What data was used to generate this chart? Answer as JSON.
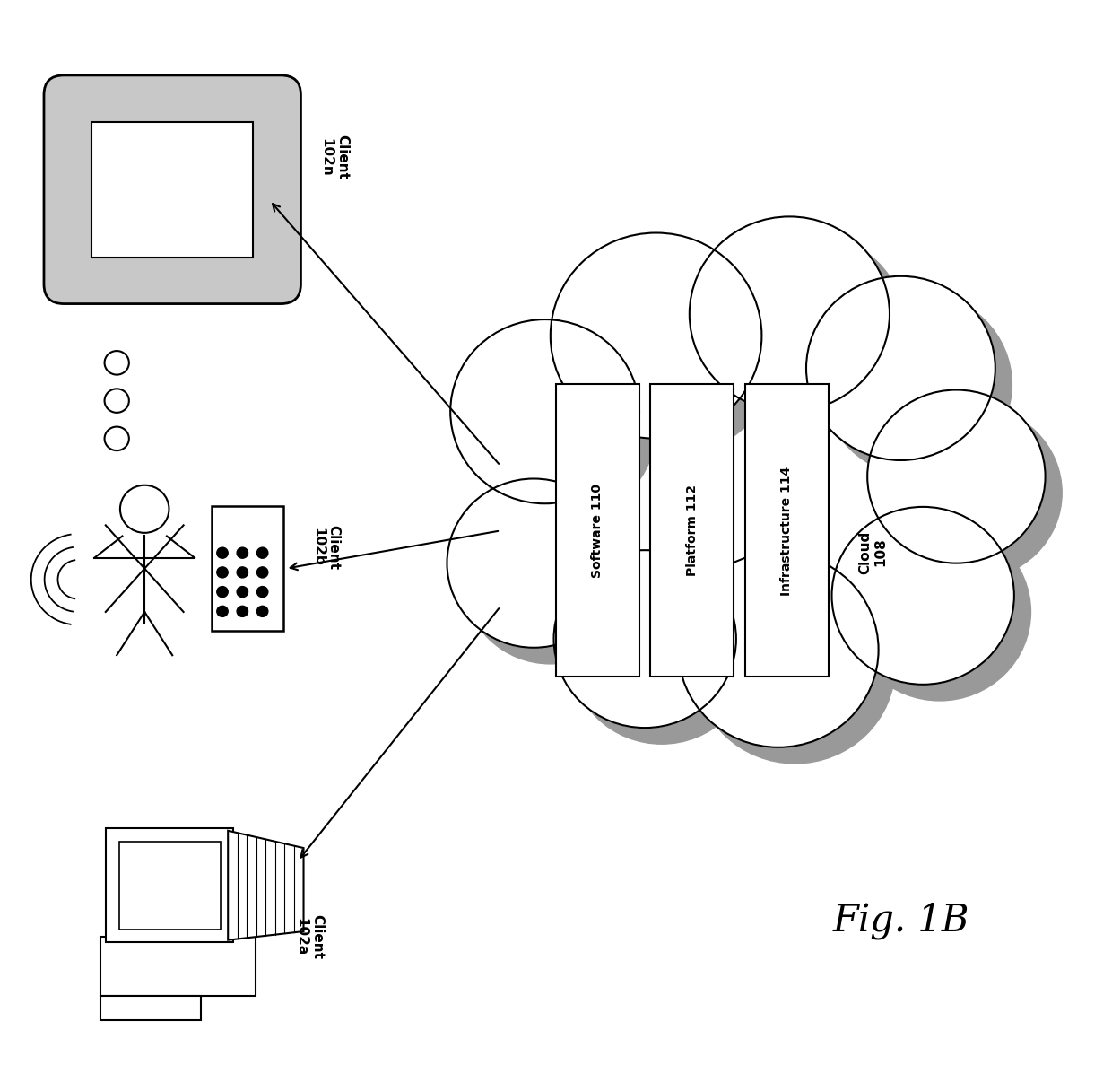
{
  "background_color": "#ffffff",
  "cloud_label": "Cloud\n108",
  "cloud_layers": [
    "Software 110",
    "Platform 112",
    "Infrastructure 114"
  ],
  "clients": [
    {
      "label": "Client\n102n",
      "type": "tablet"
    },
    {
      "label": "Client\n102b",
      "type": "mobile"
    },
    {
      "label": "Client\n102a",
      "type": "laptop"
    }
  ],
  "fig_label": "Fig. 1B",
  "tablet_color": "#cccccc",
  "cloud_gray": "#aaaaaa",
  "arrow_color": "#000000"
}
